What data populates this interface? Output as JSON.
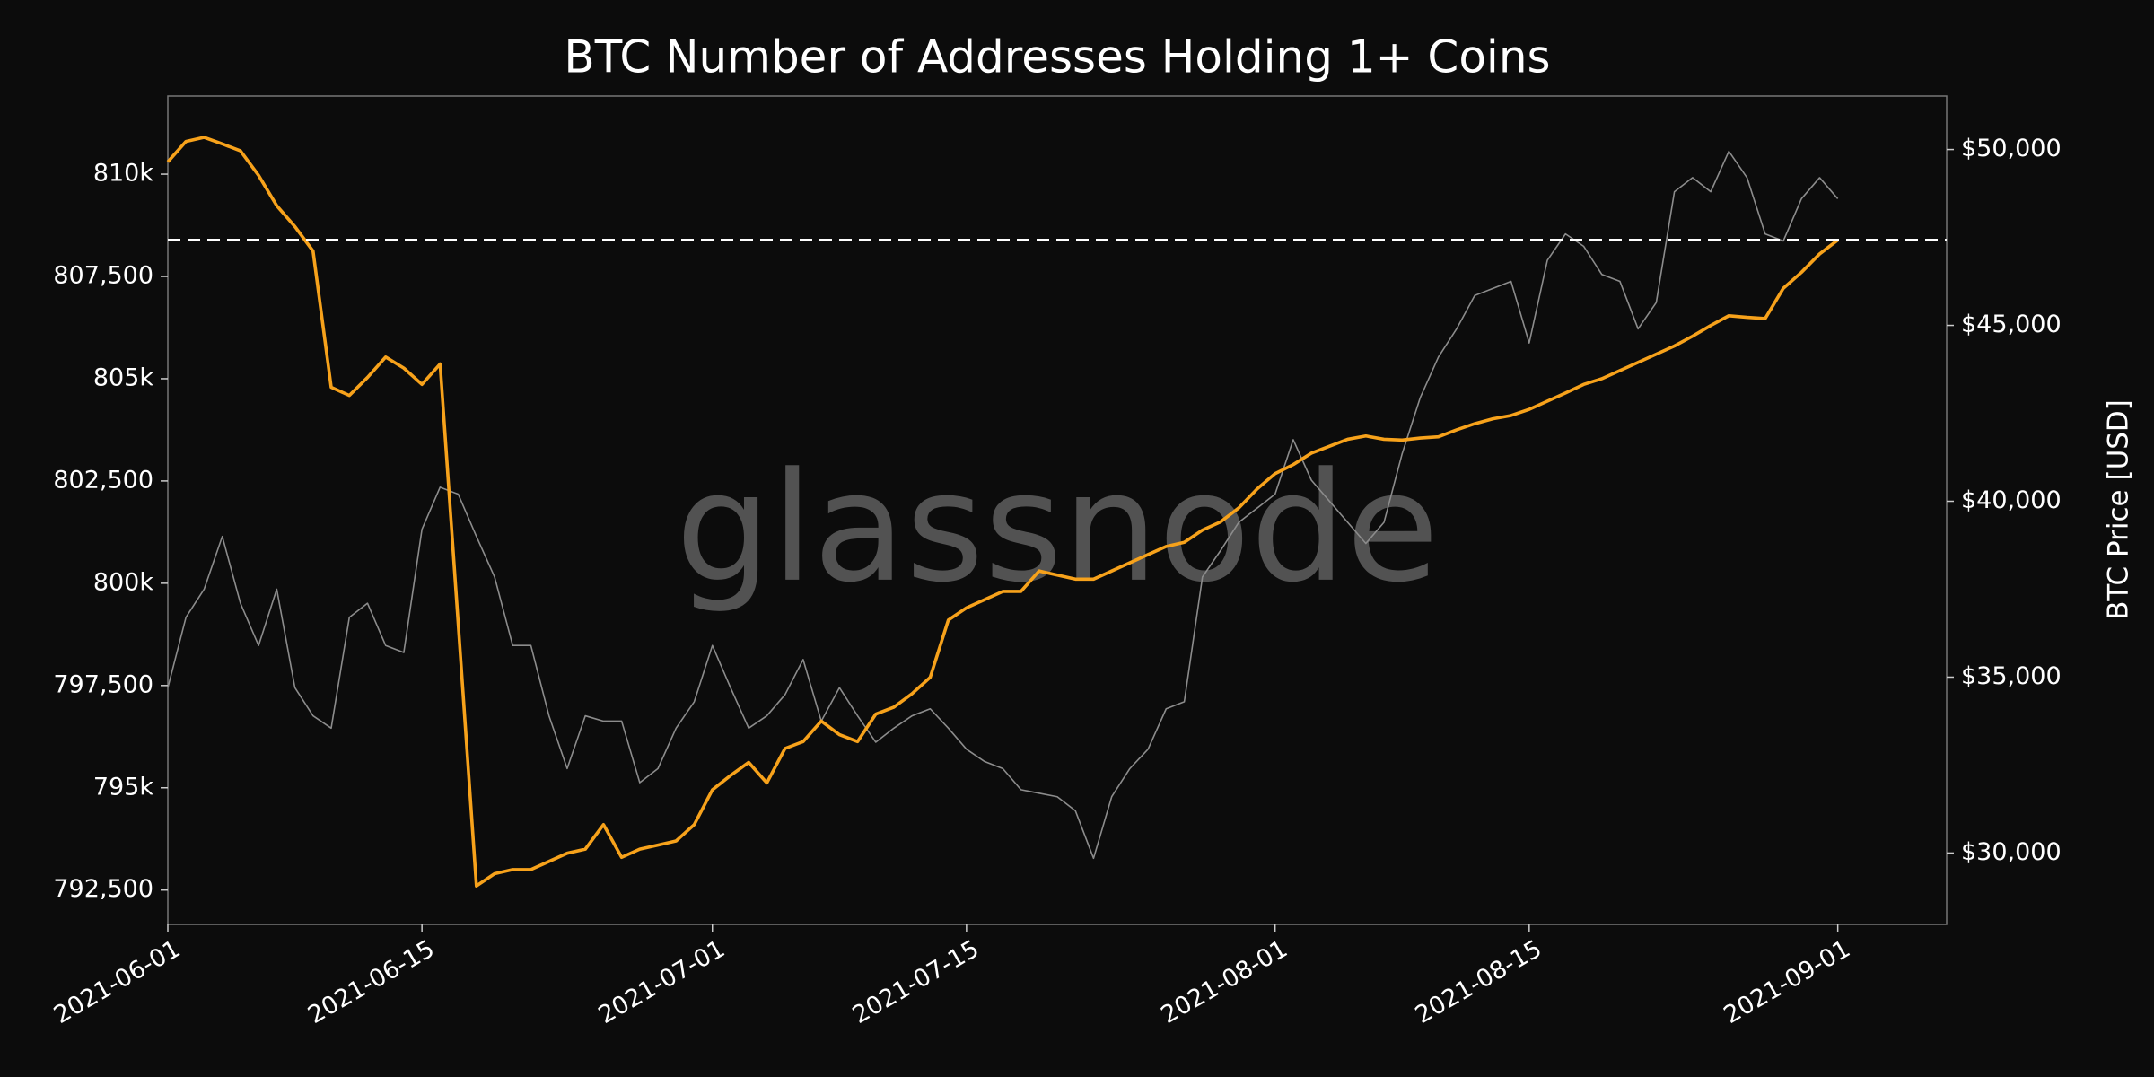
{
  "chart_data": {
    "type": "line",
    "title": "BTC Number of Addresses Holding 1+ Coins",
    "y2label": "BTC Price [USD]",
    "watermark": "glassnode",
    "x": [
      "2021-06-01",
      "2021-06-02",
      "2021-06-03",
      "2021-06-04",
      "2021-06-05",
      "2021-06-06",
      "2021-06-07",
      "2021-06-08",
      "2021-06-09",
      "2021-06-10",
      "2021-06-11",
      "2021-06-12",
      "2021-06-13",
      "2021-06-14",
      "2021-06-15",
      "2021-06-16",
      "2021-06-17",
      "2021-06-18",
      "2021-06-19",
      "2021-06-20",
      "2021-06-21",
      "2021-06-22",
      "2021-06-23",
      "2021-06-24",
      "2021-06-25",
      "2021-06-26",
      "2021-06-27",
      "2021-06-28",
      "2021-06-29",
      "2021-06-30",
      "2021-07-01",
      "2021-07-02",
      "2021-07-03",
      "2021-07-04",
      "2021-07-05",
      "2021-07-06",
      "2021-07-07",
      "2021-07-08",
      "2021-07-09",
      "2021-07-10",
      "2021-07-11",
      "2021-07-12",
      "2021-07-13",
      "2021-07-14",
      "2021-07-15",
      "2021-07-16",
      "2021-07-17",
      "2021-07-18",
      "2021-07-19",
      "2021-07-20",
      "2021-07-21",
      "2021-07-22",
      "2021-07-23",
      "2021-07-24",
      "2021-07-25",
      "2021-07-26",
      "2021-07-27",
      "2021-07-28",
      "2021-07-29",
      "2021-07-30",
      "2021-07-31",
      "2021-08-01",
      "2021-08-02",
      "2021-08-03",
      "2021-08-04",
      "2021-08-05",
      "2021-08-06",
      "2021-08-07",
      "2021-08-08",
      "2021-08-09",
      "2021-08-10",
      "2021-08-11",
      "2021-08-12",
      "2021-08-13",
      "2021-08-14",
      "2021-08-15",
      "2021-08-16",
      "2021-08-17",
      "2021-08-18",
      "2021-08-19",
      "2021-08-20",
      "2021-08-21",
      "2021-08-22",
      "2021-08-23",
      "2021-08-24",
      "2021-08-25",
      "2021-08-26",
      "2021-08-27",
      "2021-08-28",
      "2021-08-29",
      "2021-08-30",
      "2021-08-31",
      "2021-09-01"
    ],
    "series": [
      {
        "color": "#f7a21b",
        "axis": "y",
        "values": [
          810300,
          810800,
          810900,
          810740,
          810570,
          809970,
          809230,
          808720,
          808120,
          804790,
          804590,
          805030,
          805530,
          805260,
          804860,
          805360,
          799000,
          792600,
          792900,
          793000,
          793000,
          793200,
          793400,
          793500,
          794100,
          793300,
          793500,
          793600,
          793700,
          794100,
          794950,
          795300,
          795620,
          795120,
          795960,
          796130,
          796630,
          796300,
          796130,
          796800,
          796970,
          797300,
          797700,
          799100,
          799400,
          799600,
          799800,
          799800,
          800300,
          800200,
          800100,
          800100,
          800300,
          800500,
          800700,
          800900,
          801000,
          801300,
          801500,
          801840,
          802300,
          802680,
          802900,
          803180,
          803350,
          803520,
          803600,
          803520,
          803500,
          803550,
          803580,
          803750,
          803900,
          804020,
          804100,
          804250,
          804450,
          804650,
          804860,
          805000,
          805200,
          805400,
          805600,
          805800,
          806040,
          806300,
          806540,
          806500,
          806470,
          807210,
          807600,
          808050,
          808390
        ]
      },
      {
        "color": "#8c8c8c",
        "axis": "y2",
        "values": [
          34700,
          36700,
          37500,
          39000,
          37100,
          35900,
          37500,
          34700,
          33900,
          33550,
          36700,
          37100,
          35900,
          35700,
          39200,
          40400,
          40200,
          39000,
          37850,
          35900,
          35900,
          33900,
          32400,
          33900,
          33750,
          33750,
          32000,
          32400,
          33550,
          34300,
          35900,
          34700,
          33550,
          33900,
          34500,
          35500,
          33750,
          34700,
          33900,
          33150,
          33550,
          33900,
          34100,
          33550,
          32950,
          32600,
          32400,
          31800,
          31700,
          31600,
          31200,
          29850,
          31600,
          32400,
          32950,
          34100,
          34300,
          37850,
          38600,
          39400,
          39800,
          40200,
          41750,
          40600,
          40000,
          39400,
          38800,
          39400,
          41350,
          42950,
          44100,
          44900,
          45850,
          46050,
          46250,
          44500,
          46850,
          47600,
          47250,
          46450,
          46250,
          44900,
          45650,
          48800,
          49200,
          48800,
          49950,
          49200,
          47600,
          47400,
          48600,
          49200,
          48600
        ]
      }
    ],
    "hline": 808390,
    "xlim": [
      "2021-06-01",
      "2021-09-07"
    ],
    "xticks": [
      "2021-06-01",
      "2021-06-15",
      "2021-07-01",
      "2021-07-15",
      "2021-08-01",
      "2021-08-15",
      "2021-09-01"
    ],
    "ylim": [
      791660,
      811910
    ],
    "yticks": [
      {
        "value": 792500,
        "label": "792,500"
      },
      {
        "value": 795000,
        "label": "795k"
      },
      {
        "value": 797500,
        "label": "797,500"
      },
      {
        "value": 800000,
        "label": "800k"
      },
      {
        "value": 802500,
        "label": "802,500"
      },
      {
        "value": 805000,
        "label": "805k"
      },
      {
        "value": 807500,
        "label": "807,500"
      },
      {
        "value": 810000,
        "label": "810k"
      }
    ],
    "y2lim": [
      27970,
      51520
    ],
    "y2ticks": [
      {
        "value": 30000,
        "label": "$30,000"
      },
      {
        "value": 35000,
        "label": "$35,000"
      },
      {
        "value": 40000,
        "label": "$40,000"
      },
      {
        "value": 45000,
        "label": "$45,000"
      },
      {
        "value": 50000,
        "label": "$50,000"
      }
    ]
  }
}
